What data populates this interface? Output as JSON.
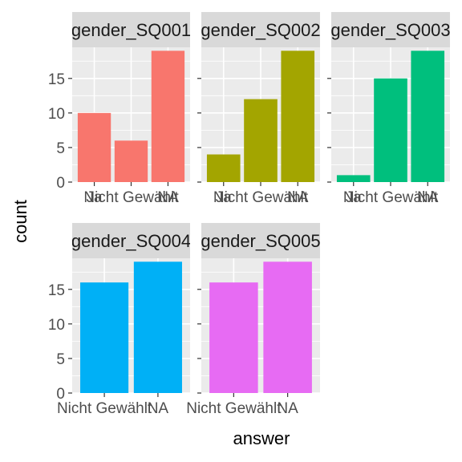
{
  "figure": {
    "xlabel": "answer",
    "ylabel": "count"
  },
  "chart_data": {
    "type": "bar",
    "facet": true,
    "xlabel": "answer",
    "ylabel": "count",
    "ylim": [
      0,
      19.5
    ],
    "y_ticks": [
      0,
      5,
      10,
      15
    ],
    "grid": true,
    "panels": [
      {
        "title": "gender_SQ001",
        "color": "#F8766D",
        "categories": [
          "Ja",
          "Nicht Gewählt",
          "NA"
        ],
        "values": [
          10,
          6,
          19
        ]
      },
      {
        "title": "gender_SQ002",
        "color": "#A3A500",
        "categories": [
          "Ja",
          "Nicht Gewählt",
          "NA"
        ],
        "values": [
          4,
          12,
          19
        ]
      },
      {
        "title": "gender_SQ003",
        "color": "#00BF7D",
        "categories": [
          "Ja",
          "Nicht Gewählt",
          "NA"
        ],
        "values": [
          1,
          15,
          19
        ]
      },
      {
        "title": "gender_SQ004",
        "color": "#00B0F6",
        "categories": [
          "Nicht Gewählt",
          "NA"
        ],
        "values": [
          16,
          19
        ]
      },
      {
        "title": "gender_SQ005",
        "color": "#E76BF3",
        "categories": [
          "Nicht Gewählt",
          "NA"
        ],
        "values": [
          16,
          19
        ]
      }
    ]
  }
}
